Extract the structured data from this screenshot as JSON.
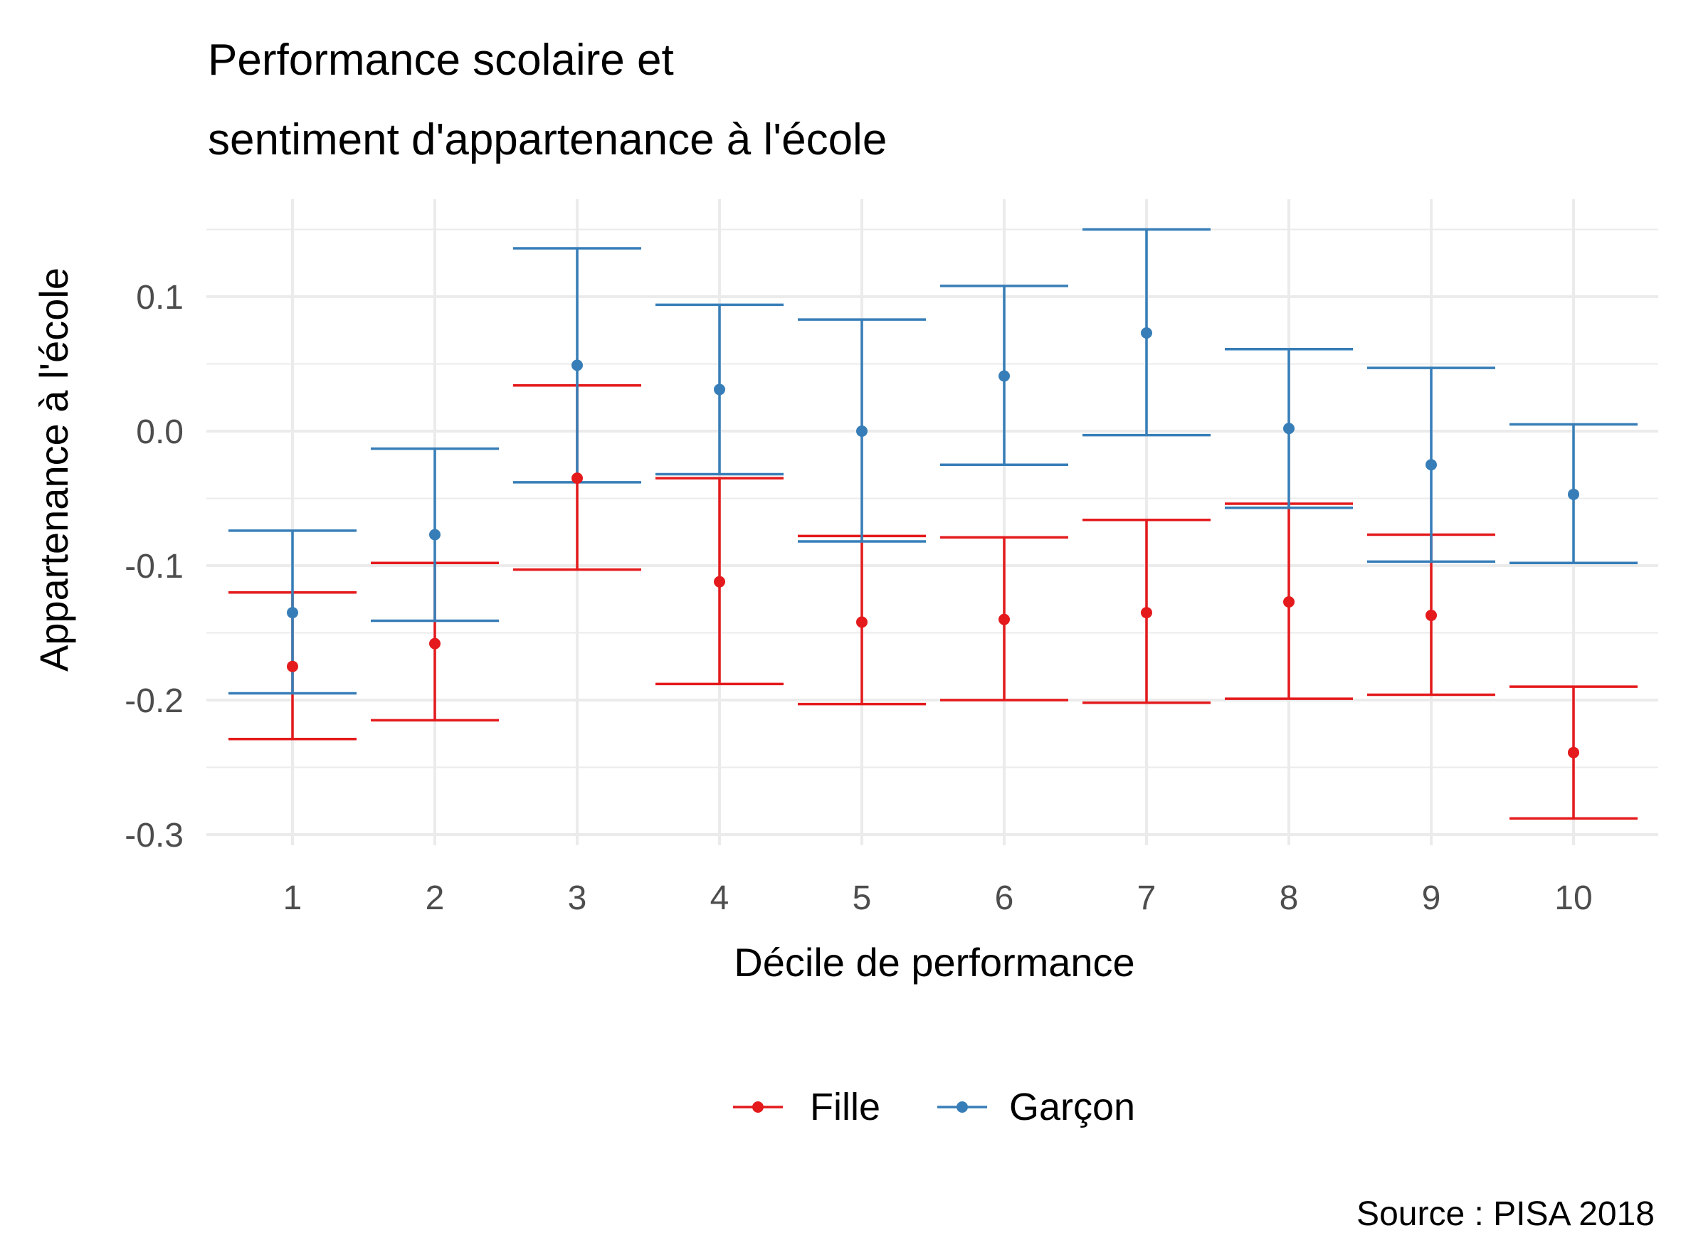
{
  "chart_data": {
    "type": "scatter",
    "title_lines": [
      "Performance scolaire et",
      "sentiment d'appartenance à l'école"
    ],
    "xlabel": "Décile de performance",
    "ylabel": "Appartenance à l'école",
    "caption": "Source : PISA 2018",
    "categories": [
      "1",
      "2",
      "3",
      "4",
      "5",
      "6",
      "7",
      "8",
      "9",
      "10"
    ],
    "ylim": [
      -0.3,
      0.15
    ],
    "y_ticks": [
      -0.3,
      -0.2,
      -0.1,
      0.0,
      0.1
    ],
    "y_tick_labels": [
      "-0.3",
      "-0.2",
      "-0.1",
      "0.0",
      "0.1"
    ],
    "grid": true,
    "legend_position": "bottom",
    "series": [
      {
        "name": "Fille",
        "color": "#E41A1C",
        "values": [
          -0.175,
          -0.158,
          -0.035,
          -0.112,
          -0.142,
          -0.14,
          -0.135,
          -0.127,
          -0.137,
          -0.239
        ],
        "lower": [
          -0.229,
          -0.215,
          -0.103,
          -0.188,
          -0.203,
          -0.2,
          -0.202,
          -0.199,
          -0.196,
          -0.288
        ],
        "upper": [
          -0.12,
          -0.098,
          0.034,
          -0.035,
          -0.078,
          -0.079,
          -0.066,
          -0.054,
          -0.077,
          -0.19
        ]
      },
      {
        "name": "Garçon",
        "color": "#377EB8",
        "values": [
          -0.135,
          -0.077,
          0.049,
          0.031,
          0.0,
          0.041,
          0.073,
          0.002,
          -0.025,
          -0.047
        ],
        "lower": [
          -0.195,
          -0.141,
          -0.038,
          -0.032,
          -0.082,
          -0.025,
          -0.003,
          -0.057,
          -0.097,
          -0.098
        ],
        "upper": [
          -0.074,
          -0.013,
          0.136,
          0.094,
          0.083,
          0.108,
          0.15,
          0.061,
          0.047,
          0.005
        ]
      }
    ]
  }
}
